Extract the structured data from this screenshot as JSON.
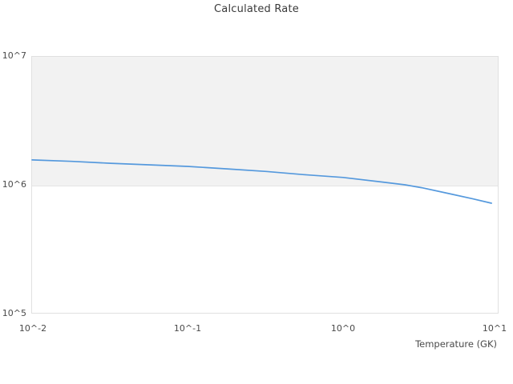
{
  "chart_data": {
    "type": "line",
    "title": "Calculated Rate",
    "xlabel": "Temperature (GK)",
    "ylabel": "",
    "xscale": "log",
    "yscale": "log",
    "xlim": [
      0.01,
      10
    ],
    "ylim": [
      100000,
      10000000
    ],
    "xtick_labels": [
      "10^-2",
      "10^-1",
      "10^0",
      "10^1"
    ],
    "ytick_labels": [
      "10^5",
      "10^6",
      "10^7"
    ],
    "legend": "none",
    "grid": "alternating horizontal band between 10^6 and 10^7",
    "band_fill_color": "#f2f2f2",
    "plot_border_color": "#e0e0e0",
    "series": [
      {
        "name": "Calculated Rate",
        "color": "#5599dd",
        "x": [
          0.01,
          0.018,
          0.032,
          0.056,
          0.1,
          0.18,
          0.32,
          0.56,
          1.0,
          1.8,
          2.5,
          3.2,
          4.8,
          6.8,
          9.0
        ],
        "y": [
          1560000,
          1520000,
          1470000,
          1430000,
          1390000,
          1330000,
          1270000,
          1200000,
          1140000,
          1050000,
          1000000,
          950000,
          855000,
          780000,
          720000
        ]
      }
    ]
  }
}
